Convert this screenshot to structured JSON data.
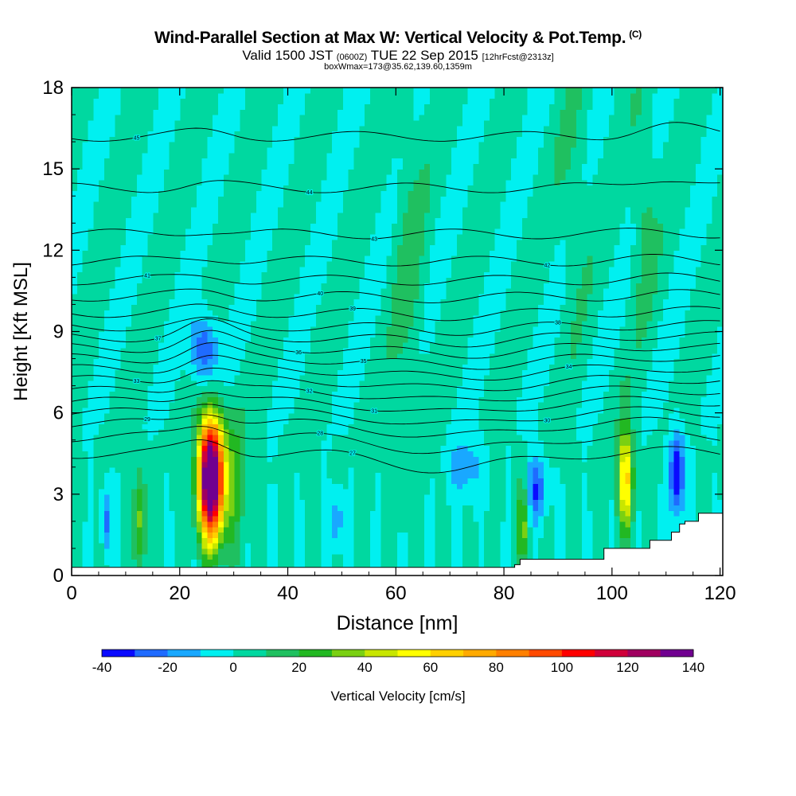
{
  "header": {
    "title": "Wind-Parallel Section at Max W: Vertical Velocity & Pot.Temp.",
    "title_mark": "(C)",
    "valid_prefix": "Valid 1500 JST",
    "valid_utc": "(0600Z)",
    "valid_date": "TUE 22 Sep 2015",
    "forecast": "[12hrFcst@2313z]",
    "box_info": "boxWmax=173@35.62,139.60,1359m"
  },
  "chart_data": {
    "type": "heatmap",
    "title": "Wind-Parallel Section at Max W: Vertical Velocity & Pot.Temp.",
    "xlabel": "Distance [nm]",
    "ylabel": "Height [Kft MSL]",
    "xlim": [
      0,
      120
    ],
    "ylim": [
      0,
      18
    ],
    "x_ticks": [
      0,
      20,
      40,
      60,
      80,
      100,
      120
    ],
    "y_ticks": [
      0,
      3,
      6,
      9,
      12,
      15,
      18
    ],
    "colorbar": {
      "label": "Vertical Velocity [cm/s]",
      "levels": [
        -40,
        -30,
        -20,
        -10,
        0,
        10,
        20,
        30,
        40,
        50,
        60,
        70,
        80,
        90,
        100,
        110,
        120,
        130,
        140
      ],
      "tick_labels": [
        "-40",
        "-20",
        "0",
        "20",
        "40",
        "60",
        "80",
        "100",
        "120",
        "140"
      ],
      "colors": [
        "#0a0aff",
        "#1f6bff",
        "#19a8ff",
        "#00f0f0",
        "#00d8a0",
        "#1fc060",
        "#22b822",
        "#7ad012",
        "#c8e600",
        "#ffff00",
        "#ffd000",
        "#ffaa00",
        "#ff8000",
        "#ff4a00",
        "#ff0000",
        "#d0003a",
        "#a00060",
        "#700090"
      ]
    },
    "background_value": 2,
    "w_features": [
      {
        "x": 25.8,
        "z": 3.6,
        "peak": 173
      },
      {
        "x": 102.5,
        "z": 3.6,
        "peak": 65
      },
      {
        "x": 112,
        "z": 3.8,
        "peak": -40
      },
      {
        "x": 24.5,
        "z": 8.3,
        "peak": -35
      },
      {
        "x": 86,
        "z": 3.2,
        "peak": -30
      },
      {
        "x": 6.5,
        "z": 2.0,
        "peak": -25
      },
      {
        "x": 73,
        "z": 4.0,
        "peak": -15
      },
      {
        "x": 49,
        "z": 2.0,
        "peak": -20
      },
      {
        "x": 30,
        "z": 3.5,
        "peak": 25
      },
      {
        "x": 83.5,
        "z": 2.0,
        "peak": 35
      },
      {
        "x": 12.7,
        "z": 2.0,
        "peak": 35
      },
      {
        "x": 62.5,
        "z": 11,
        "peak": 12
      },
      {
        "x": 93,
        "z": 14,
        "peak": 10
      },
      {
        "x": 106,
        "z": 13.5,
        "peak": 15
      }
    ],
    "theta_contours": [
      {
        "label": "45",
        "base_z": 16.2
      },
      {
        "label": "44",
        "base_z": 14.3
      },
      {
        "label": "43",
        "base_z": 12.6
      },
      {
        "label": "42",
        "base_z": 11.6
      },
      {
        "label": "41",
        "base_z": 10.9
      },
      {
        "label": "40",
        "base_z": 10.3
      },
      {
        "label": "39",
        "base_z": 9.7
      },
      {
        "label": "38",
        "base_z": 9.2
      },
      {
        "label": "37",
        "base_z": 8.8
      },
      {
        "label": "36",
        "base_z": 8.4
      },
      {
        "label": "35",
        "base_z": 8.0
      },
      {
        "label": "34",
        "base_z": 7.6
      },
      {
        "label": "33",
        "base_z": 7.2
      },
      {
        "label": "32",
        "base_z": 6.8
      },
      {
        "label": "31",
        "base_z": 6.4
      },
      {
        "label": "30",
        "base_z": 6.0
      },
      {
        "label": "29",
        "base_z": 5.6
      },
      {
        "label": "28",
        "base_z": 5.1
      },
      {
        "label": "27",
        "base_z": 4.5
      }
    ],
    "terrain": [
      {
        "x": 0,
        "z": 0.3
      },
      {
        "x": 82,
        "z": 0.3
      },
      {
        "x": 82,
        "z": 0.4
      },
      {
        "x": 83,
        "z": 0.4
      },
      {
        "x": 83,
        "z": 0.6
      },
      {
        "x": 98.5,
        "z": 0.6
      },
      {
        "x": 98.5,
        "z": 1.0
      },
      {
        "x": 107,
        "z": 1.0
      },
      {
        "x": 107,
        "z": 1.3
      },
      {
        "x": 111,
        "z": 1.3
      },
      {
        "x": 111,
        "z": 1.6
      },
      {
        "x": 112.5,
        "z": 1.6
      },
      {
        "x": 112.5,
        "z": 1.9
      },
      {
        "x": 113.5,
        "z": 1.9
      },
      {
        "x": 113.5,
        "z": 2.0
      },
      {
        "x": 116,
        "z": 2.0
      },
      {
        "x": 116,
        "z": 2.3
      },
      {
        "x": 120.5,
        "z": 2.3
      }
    ]
  }
}
